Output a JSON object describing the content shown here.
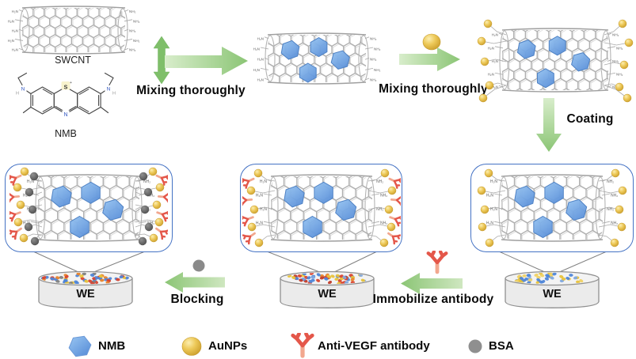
{
  "molecules": {
    "swcnt_label": "SWCNT",
    "nmb_label": "NMB",
    "amine_left": "H₂N",
    "amine_right": "NH₂",
    "nmb_atoms": {
      "sulfur": "S",
      "charge": "+",
      "ring_nitrogen": "N",
      "amine_nitrogen": "N",
      "amine_hydrogen": "H"
    }
  },
  "steps": {
    "mix1": "Mixing thoroughly",
    "mix2": "Mixing thoroughly",
    "coating": "Coating",
    "immobilize": "Immobilize antibody",
    "blocking": "Blocking"
  },
  "electrodes": [
    {
      "label": "WE"
    },
    {
      "label": "WE"
    },
    {
      "label": "WE"
    }
  ],
  "legend": {
    "items": [
      {
        "name": "NMB",
        "icon": "nmb-hexagon",
        "color": "#6f9fe0"
      },
      {
        "name": "AuNPs",
        "icon": "gold-nanoparticle",
        "color": "#e3b63a"
      },
      {
        "name": "Anti-VEGF antibody",
        "icon": "antibody-y",
        "color": "#e4574a"
      },
      {
        "name": "BSA",
        "icon": "gray-sphere",
        "color": "#8a8a8a"
      }
    ]
  },
  "colors": {
    "arrow_green": "#8bc575",
    "panel_border": "#4472c4",
    "nmb_blue": "#5d92da",
    "gold": "#e3b63a",
    "antibody_red": "#e4574a",
    "bsa_gray": "#8a8a8a",
    "mesh_gray": "#b6b6b6"
  }
}
